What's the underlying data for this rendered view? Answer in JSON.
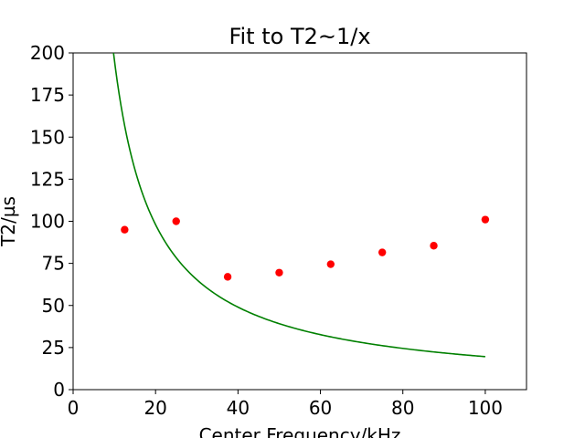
{
  "chart_data": {
    "type": "scatter",
    "title": "Fit to T2~1/x",
    "xlabel": "Center Frequency/kHz",
    "ylabel": "T2/µs",
    "xlim": [
      0,
      110
    ],
    "ylim": [
      0,
      200
    ],
    "xticks": [
      0,
      20,
      40,
      60,
      80,
      100
    ],
    "yticks": [
      0,
      25,
      50,
      75,
      100,
      125,
      150,
      175,
      200
    ],
    "grid": false,
    "series": [
      {
        "kind": "scatter",
        "color": "#ff0000",
        "x": [
          12.5,
          25,
          37.5,
          50,
          62.5,
          75,
          87.5,
          100
        ],
        "y": [
          95,
          100,
          67,
          69.5,
          74.5,
          81.5,
          85.5,
          101
        ]
      },
      {
        "kind": "line",
        "color": "#008000",
        "function": "1/x",
        "coefficient": 1960,
        "x_range": [
          9.8,
          100
        ]
      }
    ]
  }
}
